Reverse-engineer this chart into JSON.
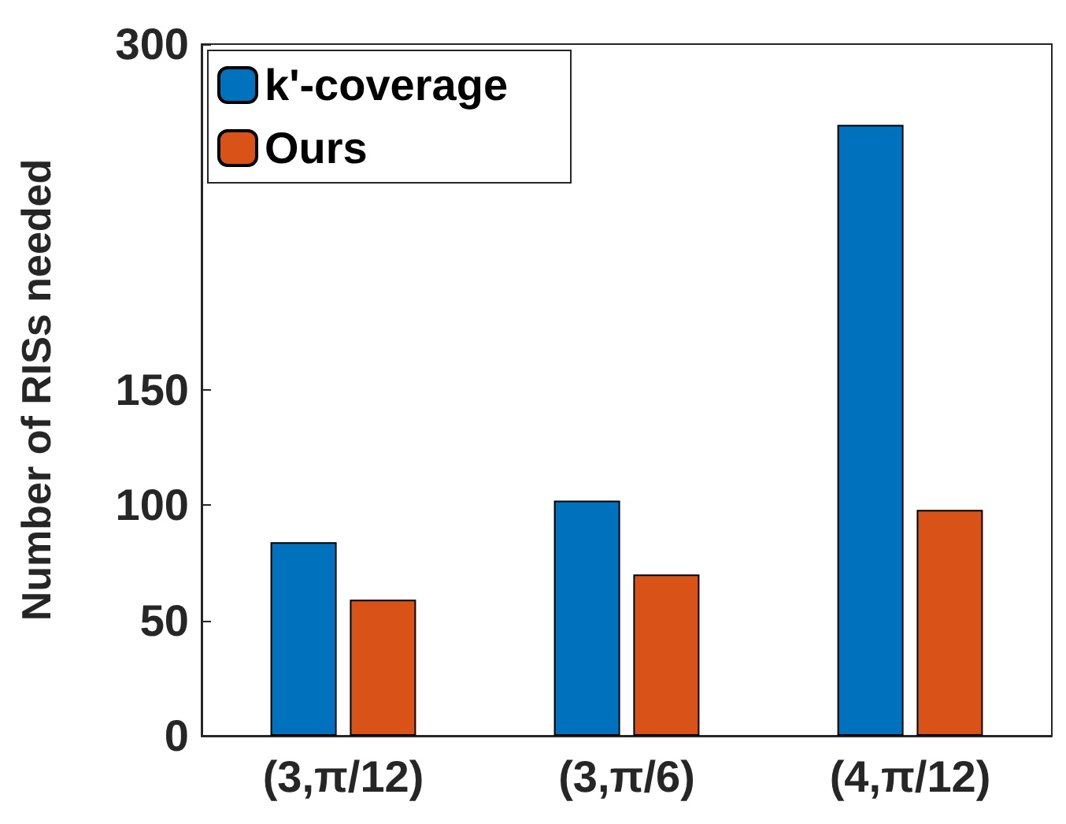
{
  "chart_data": {
    "type": "bar",
    "ylabel": "Number of RISs needed",
    "categories": [
      "(3,π/12)",
      "(3,π/6)",
      "(4,π/12)"
    ],
    "series": [
      {
        "name": "k'-coverage",
        "color": "#0072bd",
        "values": [
          84,
          102,
          265
        ]
      },
      {
        "name": "Ours",
        "color": "#d95319",
        "values": [
          59,
          70,
          98
        ]
      }
    ],
    "ylim": [
      0,
      300
    ],
    "yticks": [
      0,
      50,
      100,
      150,
      300
    ],
    "grid": false,
    "legend": "top left"
  }
}
